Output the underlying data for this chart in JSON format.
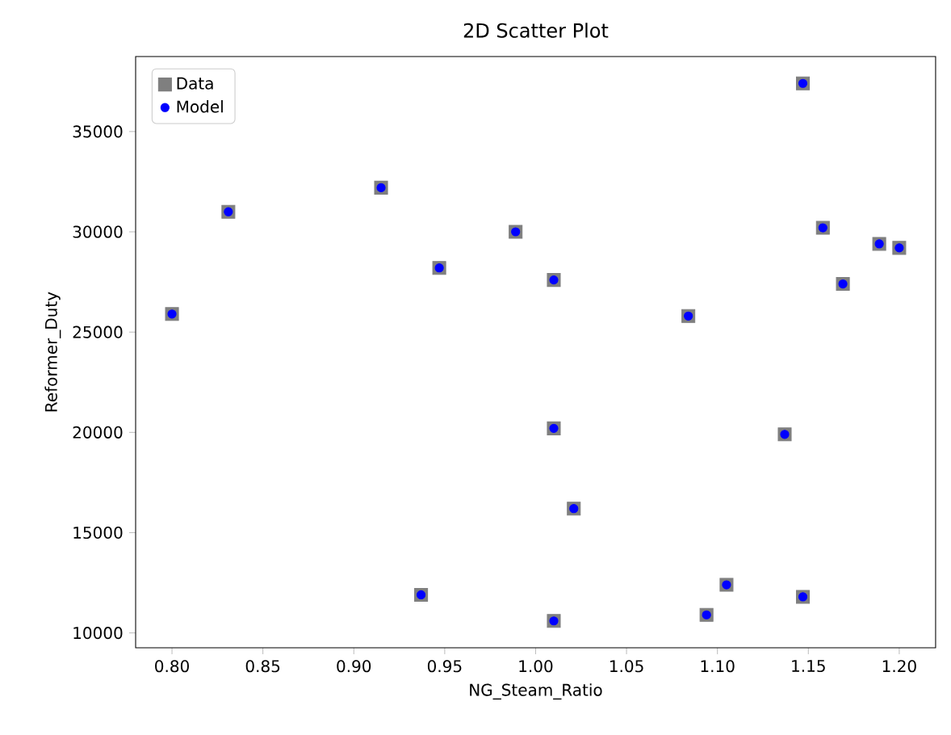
{
  "chart_data": {
    "type": "scatter",
    "title": "2D Scatter Plot",
    "xlabel": "NG_Steam_Ratio",
    "ylabel": "Reformer_Duty",
    "x": [
      0.8,
      0.831,
      0.915,
      0.947,
      0.989,
      1.01,
      1.01,
      1.021,
      0.937,
      1.01,
      1.084,
      1.094,
      1.105,
      1.137,
      1.147,
      1.147,
      1.158,
      1.169,
      1.189,
      1.2
    ],
    "series": [
      {
        "name": "Data",
        "color": "#7f7f7f",
        "marker": "square",
        "values": [
          25900,
          31000,
          32200,
          28200,
          30000,
          27600,
          20200,
          16200,
          11900,
          10600,
          25800,
          10900,
          12400,
          19900,
          37400,
          11800,
          30200,
          27400,
          29400,
          29200
        ]
      },
      {
        "name": "Model",
        "color": "#0000ff",
        "marker": "circle",
        "values": [
          25900,
          31000,
          32200,
          28200,
          30000,
          27600,
          20200,
          16200,
          11900,
          10600,
          25800,
          10900,
          12400,
          19900,
          37400,
          11800,
          30200,
          27400,
          29400,
          29200
        ]
      }
    ],
    "xlim": [
      0.78,
      1.22
    ],
    "ylim": [
      9260,
      38740
    ],
    "xticks": [
      {
        "value": 0.8,
        "label": "0.80"
      },
      {
        "value": 0.85,
        "label": "0.85"
      },
      {
        "value": 0.9,
        "label": "0.90"
      },
      {
        "value": 0.95,
        "label": "0.95"
      },
      {
        "value": 1.0,
        "label": "1.00"
      },
      {
        "value": 1.05,
        "label": "1.05"
      },
      {
        "value": 1.1,
        "label": "1.10"
      },
      {
        "value": 1.15,
        "label": "1.15"
      },
      {
        "value": 1.2,
        "label": "1.20"
      }
    ],
    "yticks": [
      10000,
      15000,
      20000,
      25000,
      30000,
      35000
    ],
    "grid": false,
    "legend": "top left"
  }
}
